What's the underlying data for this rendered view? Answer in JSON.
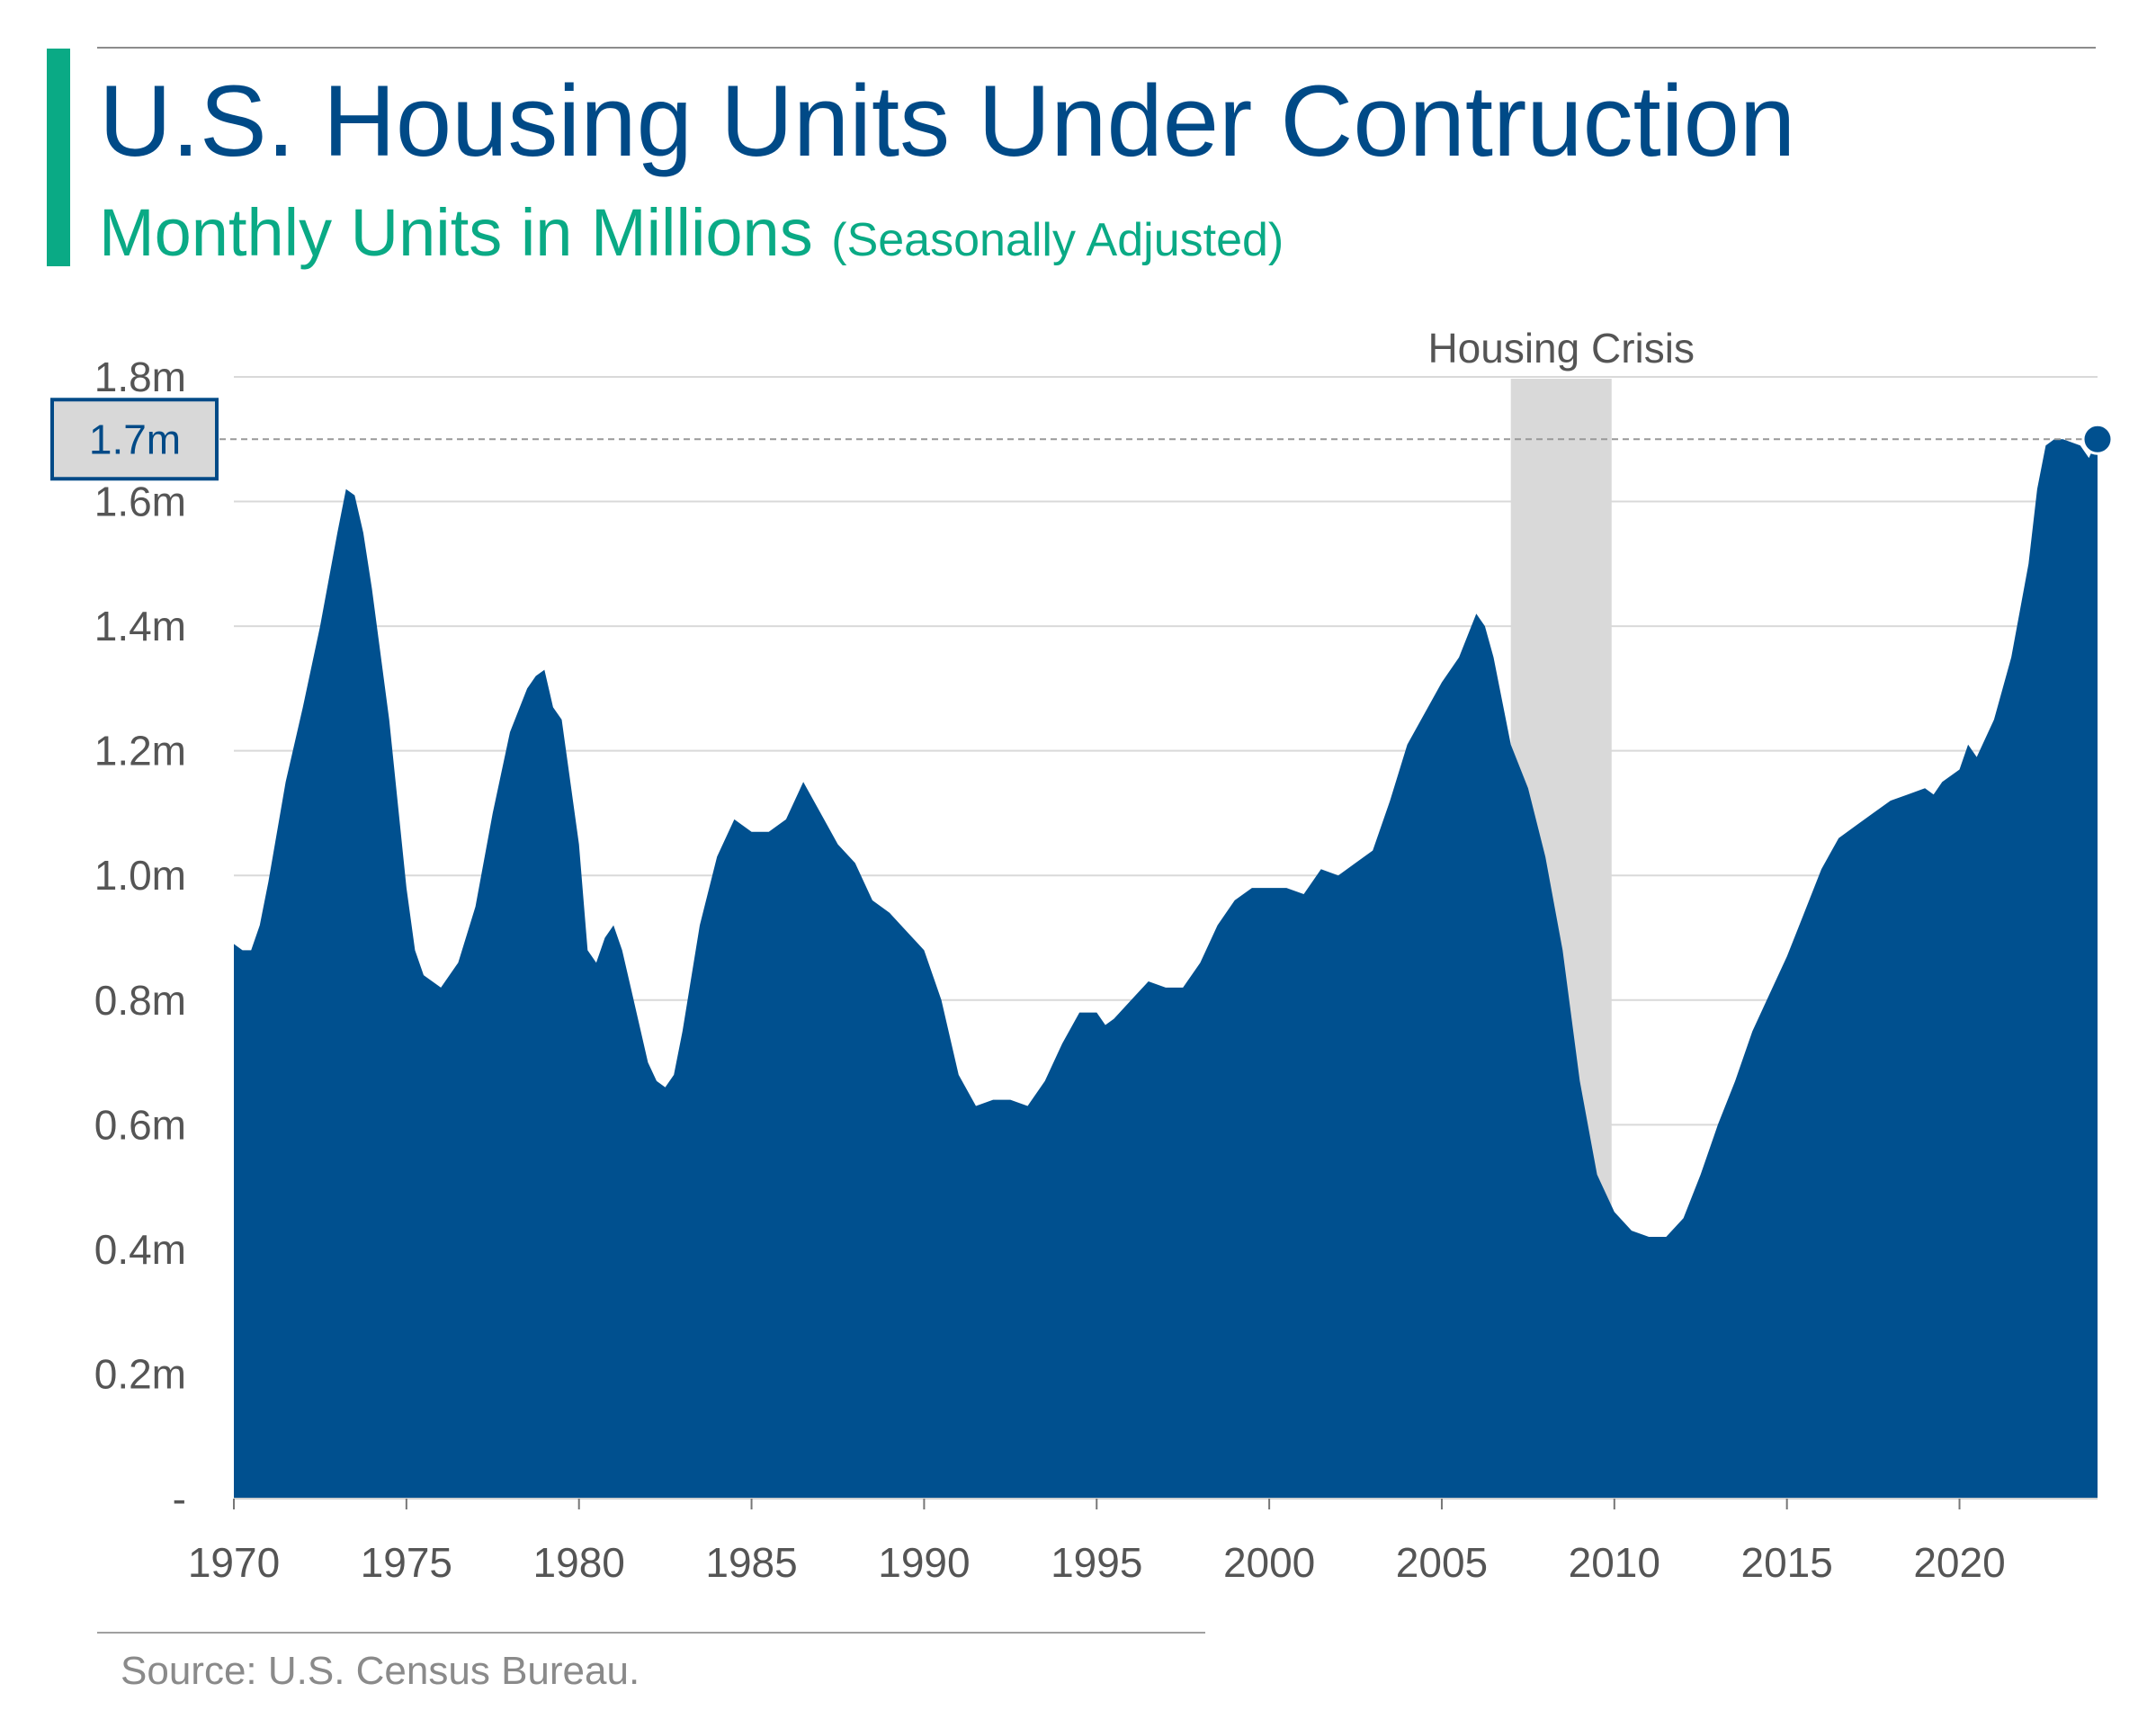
{
  "header": {
    "title": "U.S. Housing Units Under Contruction",
    "subtitle_main": "Monthly Units in Millions",
    "subtitle_note": "(Seasonally Adjusted)"
  },
  "footer": {
    "source": "Source: U.S. Census Bureau."
  },
  "colors": {
    "area": "#00508f",
    "accent": "#0aaa85",
    "title": "#004a87",
    "crisis_band": "#d9d9d9",
    "grid": "#d9d9d9",
    "tick_text": "#555555"
  },
  "chart_data": {
    "type": "area",
    "title": "U.S. Housing Units Under Contruction",
    "subtitle": "Monthly Units in Millions (Seasonally Adjusted)",
    "xlabel": "",
    "ylabel": "",
    "xlim": [
      1970,
      2024
    ],
    "ylim": [
      0,
      1.8
    ],
    "grid": true,
    "x_ticks": [
      1970,
      1975,
      1980,
      1985,
      1990,
      1995,
      2000,
      2005,
      2010,
      2015,
      2020
    ],
    "x_tick_labels": [
      "1970",
      "1975",
      "1980",
      "1985",
      "1990",
      "1995",
      "2000",
      "2005",
      "2010",
      "2015",
      "2020"
    ],
    "y_ticks": [
      0,
      0.2,
      0.4,
      0.6,
      0.8,
      1.0,
      1.2,
      1.4,
      1.6,
      1.8
    ],
    "y_tick_labels": [
      "-",
      "0.2m",
      "0.4m",
      "0.6m",
      "0.8m",
      "1.0m",
      "1.2m",
      "1.4m",
      "1.6m",
      "1.8m"
    ],
    "highlight": {
      "value": 1.7,
      "label": "1.7m"
    },
    "annotations": [
      {
        "label": "Housing Crisis",
        "x_start": 2007,
        "x_end": 2009.92
      }
    ],
    "series": [
      {
        "points": [
          [
            1970.0,
            0.89
          ],
          [
            1970.25,
            0.88
          ],
          [
            1970.5,
            0.88
          ],
          [
            1970.75,
            0.92
          ],
          [
            1971.0,
            0.99
          ],
          [
            1971.5,
            1.15
          ],
          [
            1972.0,
            1.27
          ],
          [
            1972.5,
            1.4
          ],
          [
            1973.0,
            1.55
          ],
          [
            1973.25,
            1.62
          ],
          [
            1973.5,
            1.61
          ],
          [
            1973.75,
            1.55
          ],
          [
            1974.0,
            1.46
          ],
          [
            1974.5,
            1.25
          ],
          [
            1975.0,
            0.98
          ],
          [
            1975.25,
            0.88
          ],
          [
            1975.5,
            0.84
          ],
          [
            1975.75,
            0.83
          ],
          [
            1976.0,
            0.82
          ],
          [
            1976.5,
            0.86
          ],
          [
            1977.0,
            0.95
          ],
          [
            1977.5,
            1.1
          ],
          [
            1978.0,
            1.23
          ],
          [
            1978.5,
            1.3
          ],
          [
            1978.75,
            1.32
          ],
          [
            1979.0,
            1.33
          ],
          [
            1979.25,
            1.27
          ],
          [
            1979.5,
            1.25
          ],
          [
            1980.0,
            1.05
          ],
          [
            1980.25,
            0.88
          ],
          [
            1980.5,
            0.86
          ],
          [
            1980.75,
            0.9
          ],
          [
            1981.0,
            0.92
          ],
          [
            1981.25,
            0.88
          ],
          [
            1981.5,
            0.82
          ],
          [
            1982.0,
            0.7
          ],
          [
            1982.25,
            0.67
          ],
          [
            1982.5,
            0.66
          ],
          [
            1982.75,
            0.68
          ],
          [
            1983.0,
            0.75
          ],
          [
            1983.5,
            0.92
          ],
          [
            1984.0,
            1.03
          ],
          [
            1984.5,
            1.09
          ],
          [
            1985.0,
            1.07
          ],
          [
            1985.5,
            1.07
          ],
          [
            1986.0,
            1.09
          ],
          [
            1986.5,
            1.15
          ],
          [
            1987.0,
            1.1
          ],
          [
            1987.5,
            1.05
          ],
          [
            1988.0,
            1.02
          ],
          [
            1988.5,
            0.96
          ],
          [
            1989.0,
            0.94
          ],
          [
            1989.5,
            0.91
          ],
          [
            1990.0,
            0.88
          ],
          [
            1990.5,
            0.8
          ],
          [
            1991.0,
            0.68
          ],
          [
            1991.5,
            0.63
          ],
          [
            1992.0,
            0.64
          ],
          [
            1992.5,
            0.64
          ],
          [
            1993.0,
            0.63
          ],
          [
            1993.5,
            0.67
          ],
          [
            1994.0,
            0.73
          ],
          [
            1994.5,
            0.78
          ],
          [
            1995.0,
            0.78
          ],
          [
            1995.25,
            0.76
          ],
          [
            1995.5,
            0.77
          ],
          [
            1996.0,
            0.8
          ],
          [
            1996.5,
            0.83
          ],
          [
            1997.0,
            0.82
          ],
          [
            1997.5,
            0.82
          ],
          [
            1998.0,
            0.86
          ],
          [
            1998.5,
            0.92
          ],
          [
            1999.0,
            0.96
          ],
          [
            1999.5,
            0.98
          ],
          [
            2000.0,
            0.98
          ],
          [
            2000.5,
            0.98
          ],
          [
            2001.0,
            0.97
          ],
          [
            2001.5,
            1.01
          ],
          [
            2002.0,
            1.0
          ],
          [
            2002.5,
            1.02
          ],
          [
            2003.0,
            1.04
          ],
          [
            2003.5,
            1.12
          ],
          [
            2004.0,
            1.21
          ],
          [
            2004.5,
            1.26
          ],
          [
            2005.0,
            1.31
          ],
          [
            2005.5,
            1.35
          ],
          [
            2006.0,
            1.42
          ],
          [
            2006.25,
            1.4
          ],
          [
            2006.5,
            1.35
          ],
          [
            2007.0,
            1.21
          ],
          [
            2007.5,
            1.14
          ],
          [
            2008.0,
            1.03
          ],
          [
            2008.5,
            0.88
          ],
          [
            2009.0,
            0.67
          ],
          [
            2009.5,
            0.52
          ],
          [
            2010.0,
            0.46
          ],
          [
            2010.5,
            0.43
          ],
          [
            2011.0,
            0.42
          ],
          [
            2011.5,
            0.42
          ],
          [
            2012.0,
            0.45
          ],
          [
            2012.5,
            0.52
          ],
          [
            2013.0,
            0.6
          ],
          [
            2013.5,
            0.67
          ],
          [
            2014.0,
            0.75
          ],
          [
            2014.5,
            0.81
          ],
          [
            2015.0,
            0.87
          ],
          [
            2015.5,
            0.94
          ],
          [
            2016.0,
            1.01
          ],
          [
            2016.5,
            1.06
          ],
          [
            2017.0,
            1.08
          ],
          [
            2017.5,
            1.1
          ],
          [
            2018.0,
            1.12
          ],
          [
            2018.5,
            1.13
          ],
          [
            2019.0,
            1.14
          ],
          [
            2019.25,
            1.13
          ],
          [
            2019.5,
            1.15
          ],
          [
            2020.0,
            1.17
          ],
          [
            2020.25,
            1.21
          ],
          [
            2020.5,
            1.19
          ],
          [
            2021.0,
            1.25
          ],
          [
            2021.5,
            1.35
          ],
          [
            2022.0,
            1.5
          ],
          [
            2022.25,
            1.62
          ],
          [
            2022.5,
            1.69
          ],
          [
            2022.75,
            1.7
          ],
          [
            2023.0,
            1.7
          ],
          [
            2023.5,
            1.69
          ],
          [
            2023.75,
            1.67
          ],
          [
            2024.0,
            1.7
          ]
        ]
      }
    ]
  }
}
